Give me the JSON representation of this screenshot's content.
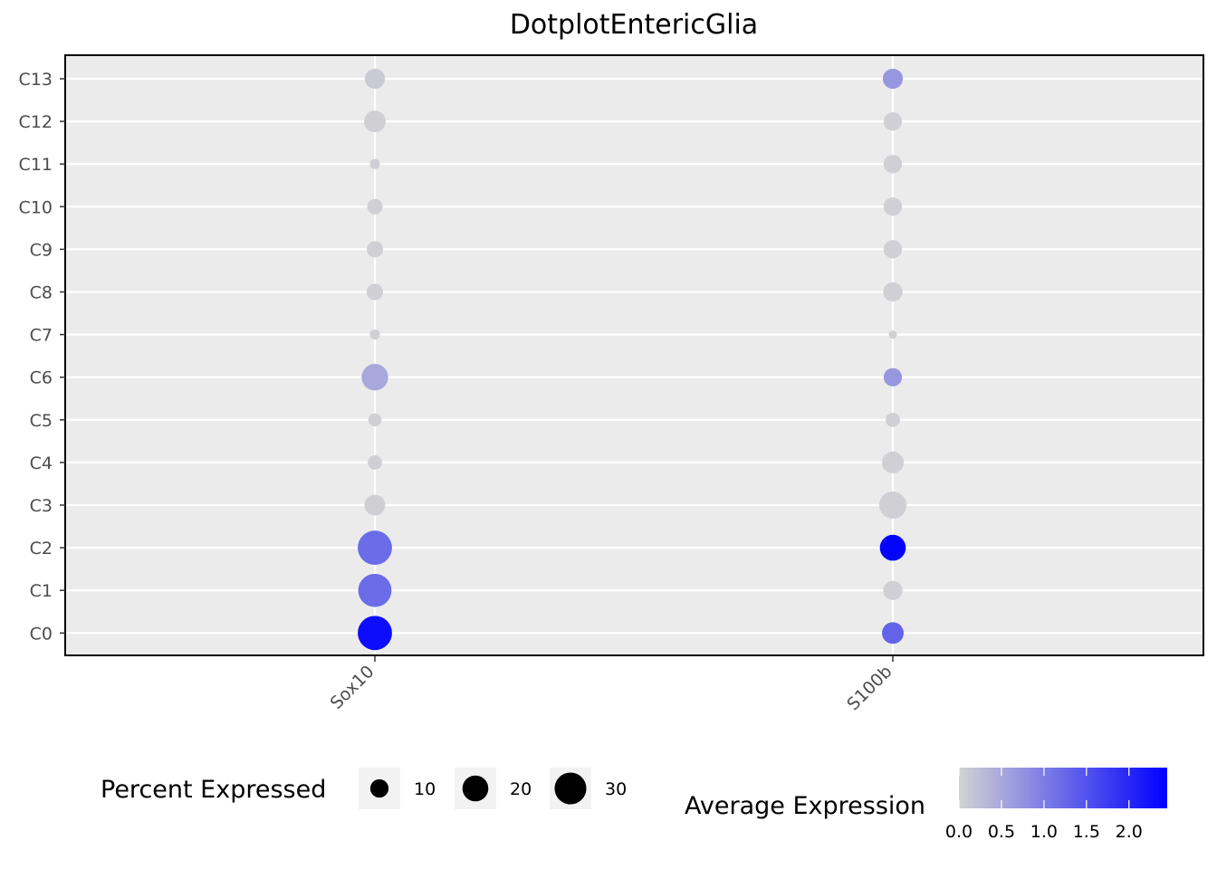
{
  "chart_data": {
    "type": "dotplot",
    "title": "DotplotEntericGlia",
    "xlabel": "",
    "ylabel": "",
    "genes": [
      "Sox10",
      "S100b"
    ],
    "clusters": [
      "C0",
      "C1",
      "C2",
      "C3",
      "C4",
      "C5",
      "C6",
      "C7",
      "C8",
      "C9",
      "C10",
      "C11",
      "C12",
      "C13"
    ],
    "points": [
      {
        "gene": "Sox10",
        "cluster": "C0",
        "pct": 35,
        "avg": 2.3
      },
      {
        "gene": "Sox10",
        "cluster": "C1",
        "pct": 33,
        "avg": 1.2
      },
      {
        "gene": "Sox10",
        "cluster": "C2",
        "pct": 35,
        "avg": 1.2
      },
      {
        "gene": "Sox10",
        "cluster": "C3",
        "pct": 13,
        "avg": 0.05
      },
      {
        "gene": "Sox10",
        "cluster": "C4",
        "pct": 6,
        "avg": 0.05
      },
      {
        "gene": "Sox10",
        "cluster": "C5",
        "pct": 5,
        "avg": 0.05
      },
      {
        "gene": "Sox10",
        "cluster": "C6",
        "pct": 21,
        "avg": 0.5
      },
      {
        "gene": "Sox10",
        "cluster": "C7",
        "pct": 3,
        "avg": 0.05
      },
      {
        "gene": "Sox10",
        "cluster": "C8",
        "pct": 8,
        "avg": 0.05
      },
      {
        "gene": "Sox10",
        "cluster": "C9",
        "pct": 8,
        "avg": 0.05
      },
      {
        "gene": "Sox10",
        "cluster": "C10",
        "pct": 7,
        "avg": 0.05
      },
      {
        "gene": "Sox10",
        "cluster": "C11",
        "pct": 3,
        "avg": 0.05
      },
      {
        "gene": "Sox10",
        "cluster": "C12",
        "pct": 14,
        "avg": 0.05
      },
      {
        "gene": "Sox10",
        "cluster": "C13",
        "pct": 12,
        "avg": 0.1
      },
      {
        "gene": "S100b",
        "cluster": "C0",
        "pct": 14,
        "avg": 1.3
      },
      {
        "gene": "S100b",
        "cluster": "C1",
        "pct": 11,
        "avg": 0.05
      },
      {
        "gene": "S100b",
        "cluster": "C2",
        "pct": 20,
        "avg": 2.4
      },
      {
        "gene": "S100b",
        "cluster": "C3",
        "pct": 22,
        "avg": 0.05
      },
      {
        "gene": "S100b",
        "cluster": "C4",
        "pct": 14,
        "avg": 0.05
      },
      {
        "gene": "S100b",
        "cluster": "C5",
        "pct": 6,
        "avg": 0.05
      },
      {
        "gene": "S100b",
        "cluster": "C6",
        "pct": 10,
        "avg": 0.7
      },
      {
        "gene": "S100b",
        "cluster": "C7",
        "pct": 2,
        "avg": 0.05
      },
      {
        "gene": "S100b",
        "cluster": "C8",
        "pct": 11,
        "avg": 0.05
      },
      {
        "gene": "S100b",
        "cluster": "C9",
        "pct": 10,
        "avg": 0.05
      },
      {
        "gene": "S100b",
        "cluster": "C10",
        "pct": 10,
        "avg": 0.05
      },
      {
        "gene": "S100b",
        "cluster": "C11",
        "pct": 10,
        "avg": 0.05
      },
      {
        "gene": "S100b",
        "cluster": "C12",
        "pct": 10,
        "avg": 0.05
      },
      {
        "gene": "S100b",
        "cluster": "C13",
        "pct": 12,
        "avg": 0.7
      }
    ],
    "size_legend": {
      "title": "Percent Expressed",
      "values": [
        10,
        20,
        30
      ],
      "labels": [
        "10",
        "20",
        "30"
      ]
    },
    "color_legend": {
      "title": "Average Expression",
      "low_color": "#d3d3d3",
      "high_color": "#0000ff",
      "range": [
        0.0,
        2.45
      ],
      "ticks": [
        0.0,
        0.5,
        1.0,
        1.5,
        2.0
      ],
      "tick_labels": [
        "0.0",
        "0.5",
        "1.0",
        "1.5",
        "2.0"
      ]
    },
    "panel_background": "#ebebeb",
    "grid": true,
    "legend_position": "bottom"
  }
}
